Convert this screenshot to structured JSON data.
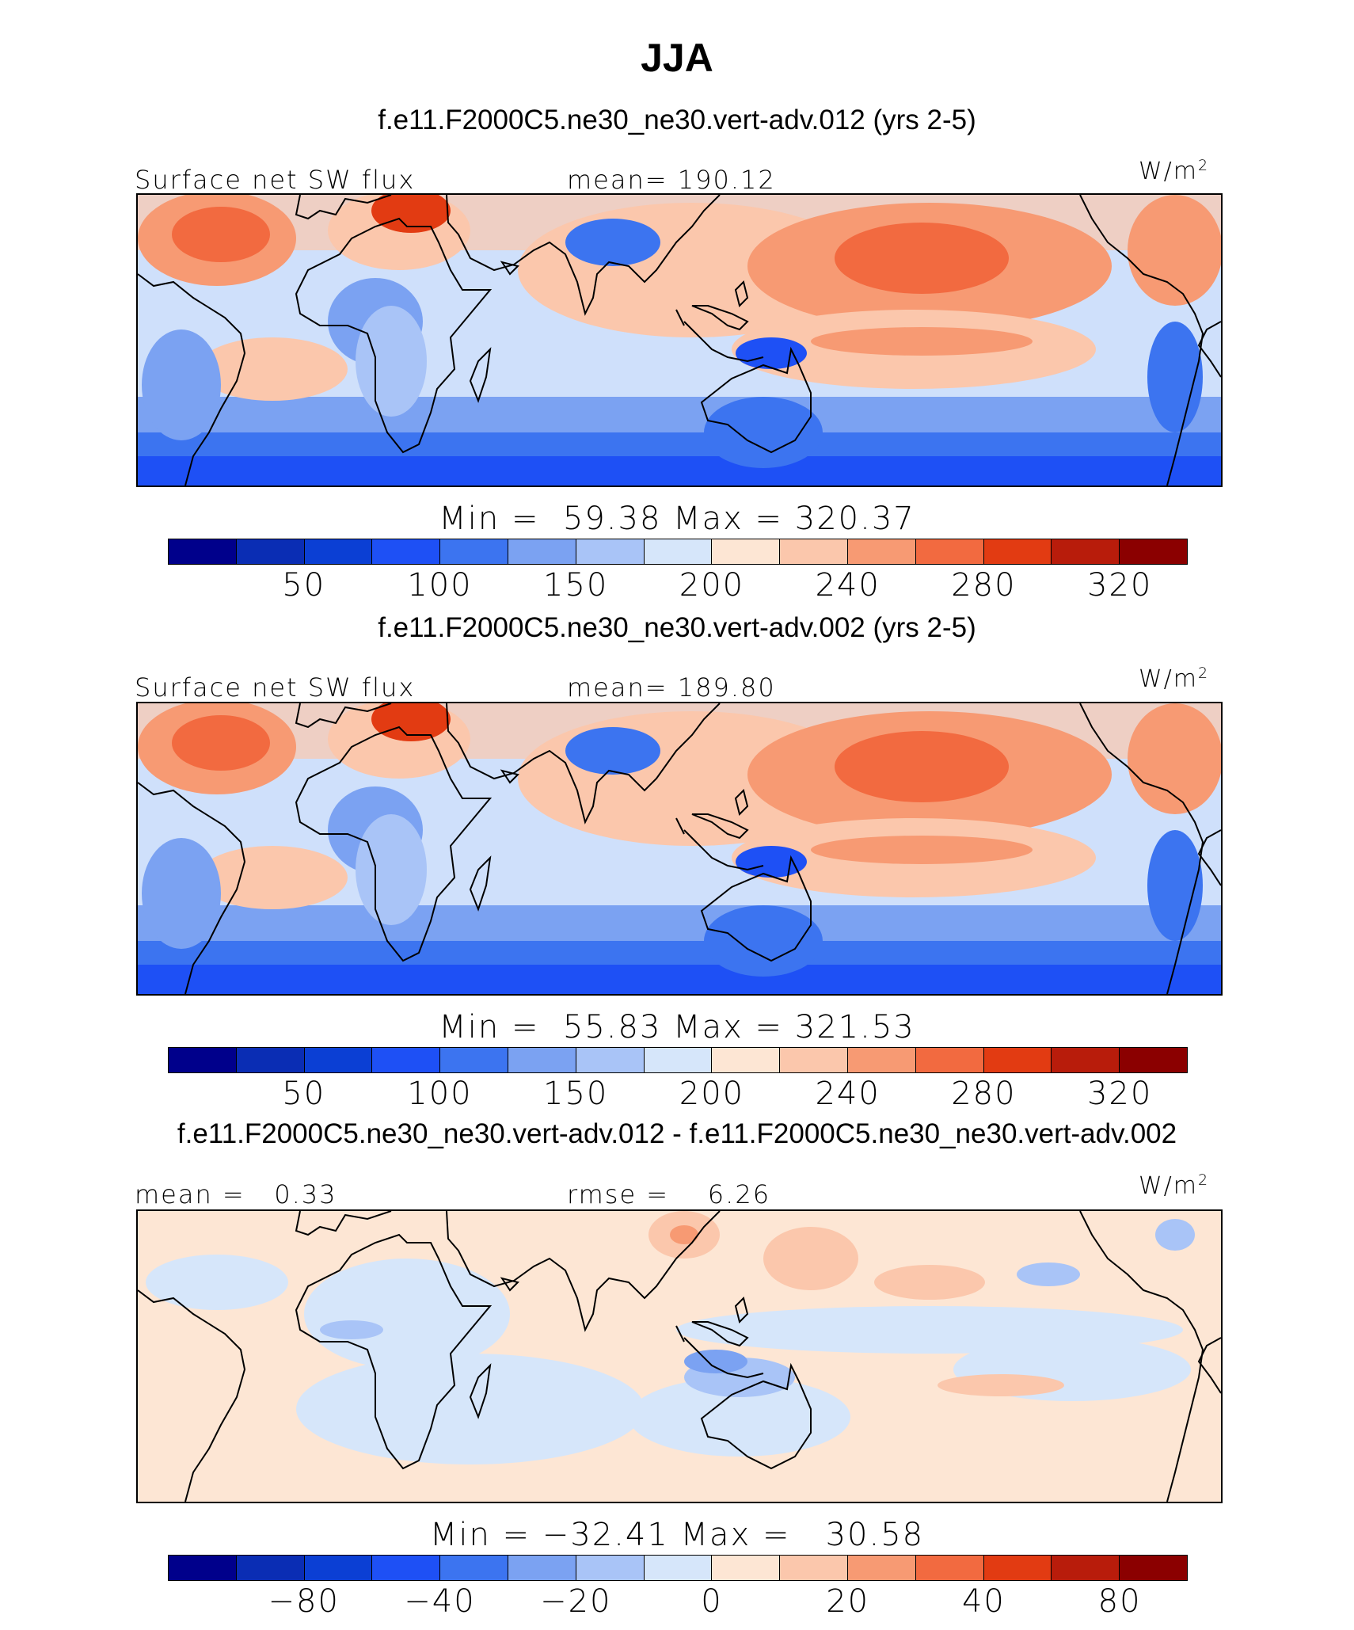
{
  "title": "JJA",
  "panels": [
    {
      "case_title": "f.e11.F2000C5.ne30_ne30.vert-adv.012 (yrs 2-5)",
      "left_label": "Surface net SW flux",
      "center_label": "mean= 190.12",
      "units": "W/m",
      "units_sup": "2",
      "minmax": "Min =  59.38 Max = 320.37",
      "tick_labels": [
        "50",
        "100",
        "150",
        "200",
        "240",
        "280",
        "320"
      ],
      "map_style": "mean"
    },
    {
      "case_title": "f.e11.F2000C5.ne30_ne30.vert-adv.002 (yrs 2-5)",
      "left_label": "Surface net SW flux",
      "center_label": "mean= 189.80",
      "units": "W/m",
      "units_sup": "2",
      "minmax": "Min =  55.83 Max = 321.53",
      "tick_labels": [
        "50",
        "100",
        "150",
        "200",
        "240",
        "280",
        "320"
      ],
      "map_style": "mean"
    },
    {
      "case_title": "f.e11.F2000C5.ne30_ne30.vert-adv.012 - f.e11.F2000C5.ne30_ne30.vert-adv.002",
      "left_label": "mean =   0.33",
      "center_label": "rmse =    6.26",
      "units": "W/m",
      "units_sup": "2",
      "minmax": "Min = −32.41 Max =   30.58",
      "tick_labels": [
        "−80",
        "−40",
        "−20",
        "0",
        "20",
        "40",
        "80"
      ],
      "map_style": "diff"
    }
  ],
  "colorbar_colors": [
    "#00008b",
    "#0a2db4",
    "#0b3fd4",
    "#1e50f5",
    "#3c74f0",
    "#7ba2f2",
    "#a9c4f7",
    "#d6e6fa",
    "#fde6d4",
    "#fbc7ac",
    "#f79a73",
    "#f26a40",
    "#e23b12",
    "#b81c0b",
    "#8b0000"
  ],
  "colors": {
    "background": "#ffffff",
    "coastline": "#000000"
  }
}
